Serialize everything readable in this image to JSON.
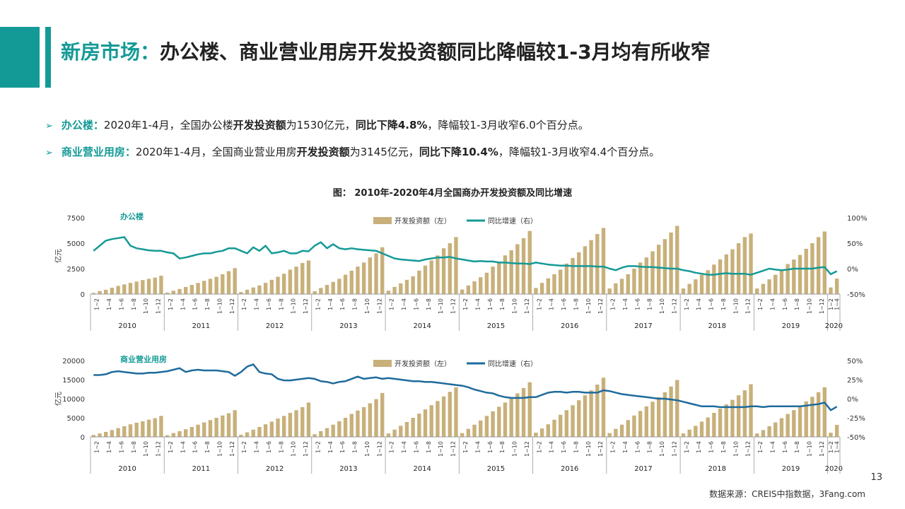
{
  "title": {
    "prefix": "新房市场：",
    "main": "办公楼、商业营业用房开发投资额同比降幅较1-3月均有所收窄"
  },
  "bullets": [
    {
      "arrow": "➢",
      "key": "办公楼：",
      "t1": "2020年1-4月，全国办公楼",
      "b1": "开发投资额",
      "t2": "为1530亿元，",
      "b2": "同比下降4.8%",
      "t3": "，降幅较1-3月收窄6.0个百分点。"
    },
    {
      "arrow": "➢",
      "key": "商业营业用房：",
      "t1": "2020年1-4月，全国商业营业用房",
      "b1": "开发投资额",
      "t2": "为3145亿元，",
      "b2": "同比下降10.4%",
      "t3": "，降幅较1-3月收窄4.4个百分点。"
    }
  ],
  "figure_caption": "图： 2010年-2020年4月全国商办开发投资额及同比增速",
  "page_number": "13",
  "source": "数据来源：CREIS中指数据，3Fang.com",
  "colors": {
    "accent": "#149a96",
    "bar": "#c8b07a",
    "office_line": "#149a96",
    "retail_line": "#1f6b9c"
  },
  "chart_data": [
    {
      "type": "bar+line",
      "panel_label": "办公楼",
      "ylabel": "亿元",
      "ylim": [
        0,
        7500
      ],
      "yticks": [
        "7500",
        "5000",
        "2500",
        "0"
      ],
      "y2lim": [
        -50,
        100
      ],
      "y2ticks": [
        "100%",
        "50%",
        "0%",
        "-50%"
      ],
      "legend": {
        "bar": "开发投资额（左）",
        "line": "同比增速（右）"
      },
      "years": [
        "2010",
        "2011",
        "2012",
        "2013",
        "2014",
        "2015",
        "2016",
        "2017",
        "2018",
        "2019",
        "2020"
      ],
      "month_labels": [
        "1~2",
        "1~4",
        "1~6",
        "1~8",
        "1~10",
        "1~12"
      ],
      "month_labels_2020": [
        "1~2",
        "1~4"
      ],
      "bar_values": [
        [
          110,
          300,
          420,
          620,
          800,
          950,
          1100,
          1230,
          1380,
          1500,
          1620,
          1800
        ],
        [
          150,
          330,
          500,
          700,
          900,
          1100,
          1300,
          1500,
          1700,
          1950,
          2250,
          2550
        ],
        [
          200,
          430,
          650,
          850,
          1100,
          1400,
          1700,
          2000,
          2400,
          2700,
          3050,
          3300
        ],
        [
          280,
          600,
          900,
          1200,
          1500,
          1900,
          2300,
          2700,
          3100,
          3600,
          4000,
          4600
        ],
        [
          330,
          700,
          1050,
          1400,
          1750,
          2300,
          2800,
          3300,
          3800,
          4500,
          5000,
          5600
        ],
        [
          450,
          850,
          1250,
          1650,
          2100,
          2700,
          3200,
          3800,
          4300,
          4900,
          5500,
          6200
        ],
        [
          600,
          1100,
          1550,
          1950,
          2400,
          3000,
          3550,
          4100,
          4700,
          5300,
          5900,
          6500
        ],
        [
          550,
          1050,
          1500,
          1950,
          2500,
          3100,
          3600,
          4200,
          4850,
          5400,
          6050,
          6700
        ],
        [
          550,
          1000,
          1450,
          1900,
          2350,
          2900,
          3400,
          3900,
          4400,
          5000,
          5600,
          5950
        ],
        [
          550,
          1000,
          1450,
          1900,
          2350,
          2950,
          3400,
          3850,
          4450,
          5000,
          5600,
          6150
        ],
        [
          650,
          1530
        ]
      ],
      "line_values": [
        [
          35,
          45,
          55,
          58,
          60,
          62,
          45,
          40,
          38,
          36,
          35,
          35
        ],
        [
          32,
          30,
          20,
          22,
          25,
          28,
          30,
          30,
          33,
          35,
          40,
          40
        ],
        [
          35,
          30,
          42,
          35,
          45,
          30,
          32,
          35,
          30,
          30,
          35,
          34
        ],
        [
          45,
          52,
          40,
          48,
          40,
          38,
          40,
          38,
          37,
          36,
          35,
          30
        ],
        [
          25,
          20,
          18,
          17,
          16,
          15,
          18,
          20,
          22,
          22,
          23,
          20
        ],
        [
          18,
          16,
          14,
          15,
          14,
          14,
          12,
          12,
          11,
          10,
          10,
          9
        ],
        [
          12,
          10,
          8,
          7,
          6,
          6,
          5,
          5,
          5,
          5,
          4,
          4
        ],
        [
          0,
          -3,
          2,
          5,
          5,
          4,
          3,
          3,
          2,
          1,
          0,
          0
        ],
        [
          -3,
          -5,
          -8,
          -10,
          -12,
          -12,
          -10,
          -9,
          -10,
          -10,
          -10,
          -12
        ],
        [
          -8,
          -4,
          0,
          -2,
          -3,
          -2,
          0,
          0,
          0,
          0,
          2,
          3
        ],
        [
          -11,
          -4.8
        ]
      ]
    },
    {
      "type": "bar+line",
      "panel_label": "商业营业用房",
      "ylabel": "亿元",
      "ylim": [
        0,
        20000
      ],
      "yticks": [
        "20000",
        "15000",
        "10000",
        "5000",
        "0"
      ],
      "y2lim": [
        -50,
        50
      ],
      "y2ticks": [
        "50%",
        "25%",
        "0%",
        "-25%",
        "-50%"
      ],
      "legend": {
        "bar": "开发投资额（左）",
        "line": "同比增速（右）"
      },
      "years": [
        "2010",
        "2011",
        "2012",
        "2013",
        "2014",
        "2015",
        "2016",
        "2017",
        "2018",
        "2019",
        "2020"
      ],
      "month_labels": [
        "1~2",
        "1~4",
        "1~6",
        "1~8",
        "1~10",
        "1~12"
      ],
      "month_labels_2020": [
        "1~2",
        "1~4"
      ],
      "bar_values": [
        [
          500,
          900,
          1300,
          1800,
          2300,
          2800,
          3300,
          3700,
          4100,
          4500,
          4900,
          5500
        ],
        [
          450,
          1000,
          1500,
          2000,
          2600,
          3200,
          3800,
          4400,
          5000,
          5600,
          6200,
          7000
        ],
        [
          550,
          1200,
          1900,
          2600,
          3300,
          4000,
          4800,
          5500,
          6300,
          7000,
          7800,
          9000
        ],
        [
          700,
          1500,
          2300,
          3200,
          4100,
          5000,
          6000,
          6900,
          7800,
          8800,
          9900,
          11500
        ],
        [
          900,
          1900,
          2900,
          3900,
          5000,
          6100,
          7200,
          8300,
          9400,
          10600,
          11800,
          13000
        ],
        [
          1000,
          2100,
          3200,
          4300,
          5500,
          6700,
          7900,
          9000,
          10200,
          11400,
          12800,
          14300
        ],
        [
          1100,
          2200,
          3300,
          4500,
          5800,
          7000,
          8300,
          9600,
          10900,
          12200,
          13700,
          15500
        ],
        [
          1000,
          2100,
          3200,
          4400,
          5600,
          6800,
          8000,
          9200,
          10400,
          11700,
          13200,
          14900
        ],
        [
          900,
          1900,
          2900,
          4000,
          5100,
          6300,
          7400,
          8500,
          9700,
          10900,
          12200,
          13800
        ],
        [
          900,
          1800,
          2800,
          3800,
          4900,
          6000,
          7000,
          8100,
          9300,
          10500,
          11700,
          13000
        ],
        [
          1100,
          3145
        ]
      ],
      "line_values": [
        [
          31,
          31,
          32,
          35,
          36,
          35,
          34,
          33,
          33,
          34,
          34,
          35
        ],
        [
          36,
          38,
          40,
          35,
          37,
          38,
          37,
          37,
          37,
          36,
          35,
          30
        ],
        [
          35,
          42,
          45,
          35,
          33,
          32,
          26,
          24,
          24,
          25,
          26,
          27
        ],
        [
          26,
          23,
          22,
          20,
          22,
          23,
          26,
          29,
          26,
          27,
          28,
          26
        ],
        [
          27,
          26,
          25,
          24,
          23,
          23,
          22,
          22,
          21,
          20,
          19,
          18
        ],
        [
          17,
          15,
          12,
          10,
          8,
          7,
          4,
          2,
          1,
          1,
          1,
          2
        ],
        [
          2,
          5,
          8,
          9,
          9,
          8,
          9,
          9,
          8,
          8,
          8,
          11
        ],
        [
          10,
          8,
          6,
          5,
          4,
          3,
          2,
          1,
          0,
          0,
          -1,
          -2
        ],
        [
          -4,
          -6,
          -8,
          -10,
          -10,
          -10,
          -11,
          -11,
          -11,
          -11,
          -11,
          -10
        ],
        [
          -10,
          -11,
          -10,
          -10,
          -10,
          -10,
          -10,
          -10,
          -9,
          -8,
          -7,
          -5
        ],
        [
          -15,
          -10.4
        ]
      ]
    }
  ]
}
